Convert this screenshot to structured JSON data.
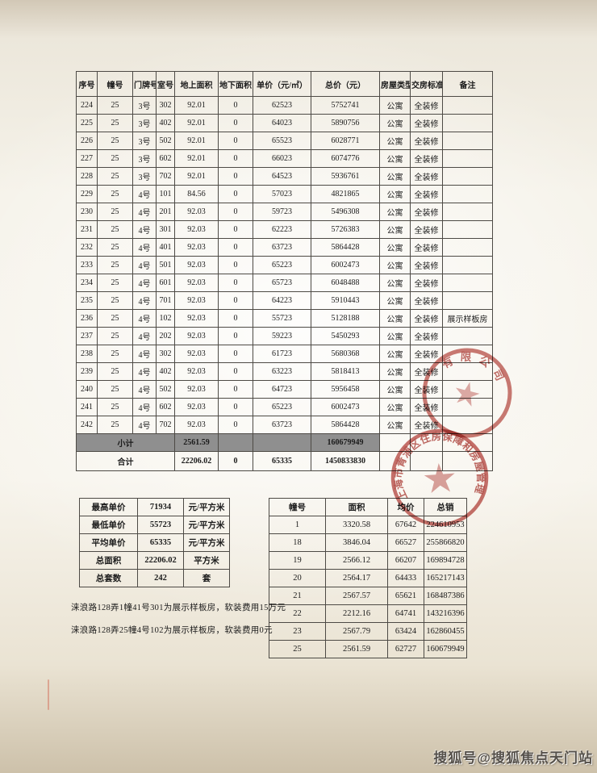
{
  "main_table": {
    "headers": [
      "序号",
      "幢号",
      "门牌号",
      "室号",
      "地上面积",
      "地下面积",
      "单价（元/㎡）",
      "总价（元）",
      "房屋类型",
      "交房标准",
      "备注"
    ],
    "rows": [
      [
        "224",
        "25",
        "3号",
        "302",
        "92.01",
        "0",
        "62523",
        "5752741",
        "公寓",
        "全装修",
        ""
      ],
      [
        "225",
        "25",
        "3号",
        "402",
        "92.01",
        "0",
        "64023",
        "5890756",
        "公寓",
        "全装修",
        ""
      ],
      [
        "226",
        "25",
        "3号",
        "502",
        "92.01",
        "0",
        "65523",
        "6028771",
        "公寓",
        "全装修",
        ""
      ],
      [
        "227",
        "25",
        "3号",
        "602",
        "92.01",
        "0",
        "66023",
        "6074776",
        "公寓",
        "全装修",
        ""
      ],
      [
        "228",
        "25",
        "3号",
        "702",
        "92.01",
        "0",
        "64523",
        "5936761",
        "公寓",
        "全装修",
        ""
      ],
      [
        "229",
        "25",
        "4号",
        "101",
        "84.56",
        "0",
        "57023",
        "4821865",
        "公寓",
        "全装修",
        ""
      ],
      [
        "230",
        "25",
        "4号",
        "201",
        "92.03",
        "0",
        "59723",
        "5496308",
        "公寓",
        "全装修",
        ""
      ],
      [
        "231",
        "25",
        "4号",
        "301",
        "92.03",
        "0",
        "62223",
        "5726383",
        "公寓",
        "全装修",
        ""
      ],
      [
        "232",
        "25",
        "4号",
        "401",
        "92.03",
        "0",
        "63723",
        "5864428",
        "公寓",
        "全装修",
        ""
      ],
      [
        "233",
        "25",
        "4号",
        "501",
        "92.03",
        "0",
        "65223",
        "6002473",
        "公寓",
        "全装修",
        ""
      ],
      [
        "234",
        "25",
        "4号",
        "601",
        "92.03",
        "0",
        "65723",
        "6048488",
        "公寓",
        "全装修",
        ""
      ],
      [
        "235",
        "25",
        "4号",
        "701",
        "92.03",
        "0",
        "64223",
        "5910443",
        "公寓",
        "全装修",
        ""
      ],
      [
        "236",
        "25",
        "4号",
        "102",
        "92.03",
        "0",
        "55723",
        "5128188",
        "公寓",
        "全装修",
        "展示样板房"
      ],
      [
        "237",
        "25",
        "4号",
        "202",
        "92.03",
        "0",
        "59223",
        "5450293",
        "公寓",
        "全装修",
        ""
      ],
      [
        "238",
        "25",
        "4号",
        "302",
        "92.03",
        "0",
        "61723",
        "5680368",
        "公寓",
        "全装修",
        ""
      ],
      [
        "239",
        "25",
        "4号",
        "402",
        "92.03",
        "0",
        "63223",
        "5818413",
        "公寓",
        "全装修",
        ""
      ],
      [
        "240",
        "25",
        "4号",
        "502",
        "92.03",
        "0",
        "64723",
        "5956458",
        "公寓",
        "全装修",
        ""
      ],
      [
        "241",
        "25",
        "4号",
        "602",
        "92.03",
        "0",
        "65223",
        "6002473",
        "公寓",
        "全装修",
        ""
      ],
      [
        "242",
        "25",
        "4号",
        "702",
        "92.03",
        "0",
        "63723",
        "5864428",
        "公寓",
        "全装修",
        ""
      ]
    ],
    "subtotal": {
      "label": "小计",
      "area": "2561.59",
      "basement": "",
      "unit_price": "",
      "total": "160679949"
    },
    "grand_total": {
      "label": "合计",
      "area": "22206.02",
      "basement": "0",
      "unit_price": "65335",
      "total": "1450833830"
    }
  },
  "summary_table": {
    "rows": [
      {
        "label": "最高单价",
        "value": "71934",
        "unit": "元/平方米"
      },
      {
        "label": "最低单价",
        "value": "55723",
        "unit": "元/平方米"
      },
      {
        "label": "平均单价",
        "value": "65335",
        "unit": "元/平方米"
      },
      {
        "label": "总面积",
        "value": "22206.02",
        "unit": "平方米"
      },
      {
        "label": "总套数",
        "value": "242",
        "unit": "套"
      }
    ]
  },
  "buildings_table": {
    "headers": [
      "幢号",
      "面积",
      "均价",
      "总销"
    ],
    "rows": [
      [
        "1",
        "3320.58",
        "67642",
        "224610953"
      ],
      [
        "18",
        "3846.04",
        "66527",
        "255866820"
      ],
      [
        "19",
        "2566.12",
        "66207",
        "169894728"
      ],
      [
        "20",
        "2564.17",
        "64433",
        "165217143"
      ],
      [
        "21",
        "2567.57",
        "65621",
        "168487386"
      ],
      [
        "22",
        "2212.16",
        "64741",
        "143216396"
      ],
      [
        "23",
        "2567.79",
        "63424",
        "162860455"
      ],
      [
        "25",
        "2561.59",
        "62727",
        "160679949"
      ]
    ]
  },
  "notes": [
    "涞浪路128弄1幢41号301为展示样板房，软装费用15万元",
    "涞浪路128弄25幢4号102为展示样板房，软装费用0元"
  ],
  "stamps": {
    "company_seal_text": "有限公司",
    "government_seal_text": "上海市青浦区住房保障和房屋管理局",
    "stamp_red": "#b5423c"
  },
  "watermark": "搜狐号@搜狐焦点天门站"
}
